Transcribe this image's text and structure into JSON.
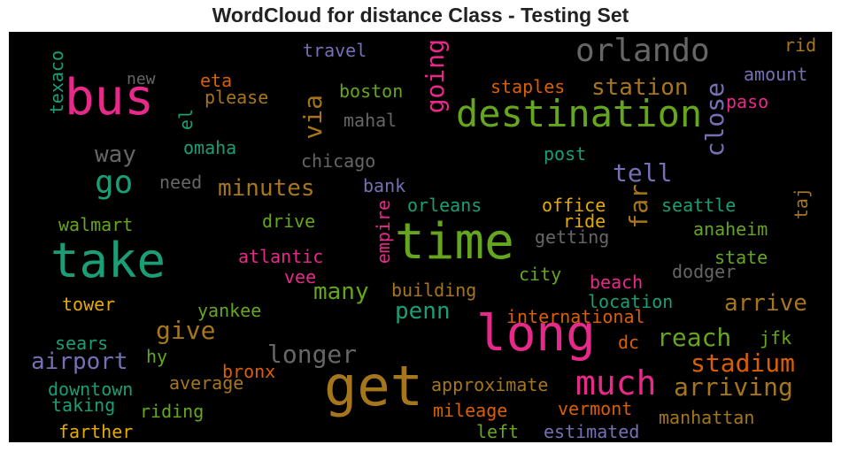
{
  "title": "WordCloud for distance Class - Testing Set",
  "colors": {
    "pink": "#e7298a",
    "green": "#66a61e",
    "teal": "#1b9e77",
    "gold": "#a6761d",
    "orange": "#d95f02",
    "purple": "#7570b3",
    "gray": "#666666",
    "yellow": "#e6ab02"
  },
  "words": [
    "bus",
    "orlando",
    "destination",
    "take",
    "time",
    "long",
    "get",
    "much",
    "station",
    "going",
    "go",
    "way",
    "tell",
    "close",
    "via",
    "texaco",
    "new",
    "eta",
    "please",
    "boston",
    "staples",
    "travel",
    "rid",
    "amount",
    "paso",
    "el",
    "mahal",
    "omaha",
    "chicago",
    "post",
    "need",
    "minutes",
    "bank",
    "office",
    "far",
    "seattle",
    "taj",
    "walmart",
    "drive",
    "orleans",
    "empire",
    "ride",
    "getting",
    "anaheim",
    "atlantic",
    "state",
    "vee",
    "dodger",
    "many",
    "city",
    "beach",
    "tower",
    "building",
    "penn",
    "location",
    "arrive",
    "yankee",
    "give",
    "international",
    "reach",
    "jfk",
    "sears",
    "airport",
    "longer",
    "dc",
    "stadium",
    "hy",
    "bronx",
    "average",
    "approximate",
    "arriving",
    "downtown",
    "taking",
    "riding",
    "mileage",
    "vermont",
    "manhattan",
    "farther",
    "left",
    "estimated"
  ]
}
